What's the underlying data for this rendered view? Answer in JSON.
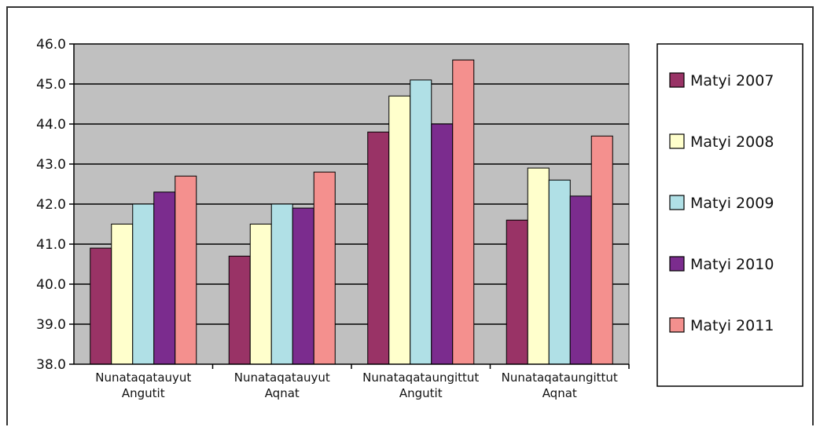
{
  "chart_data": {
    "type": "bar",
    "title": "",
    "xlabel": "",
    "ylabel": "",
    "ylim": [
      38.0,
      46.0
    ],
    "yticks": [
      "38.0",
      "39.0",
      "40.0",
      "41.0",
      "42.0",
      "43.0",
      "44.0",
      "45.0",
      "46.0"
    ],
    "grid": true,
    "legend_position": "right",
    "categories": [
      [
        "Nunataqatauyut",
        "Angutit"
      ],
      [
        "Nunataqatauyut",
        "Aqnat"
      ],
      [
        "Nunataqataungittut",
        "Angutit"
      ],
      [
        "Nunataqataungittut",
        "Aqnat"
      ]
    ],
    "series": [
      {
        "name": "Matyi 2007",
        "color": "#993366",
        "values": [
          40.9,
          40.7,
          43.8,
          41.6
        ]
      },
      {
        "name": "Matyi 2008",
        "color": "#FFFFCC",
        "values": [
          41.5,
          41.5,
          44.7,
          42.9
        ]
      },
      {
        "name": "Matyi 2009",
        "color": "#B0E0E6",
        "values": [
          42.0,
          42.0,
          45.1,
          42.6
        ]
      },
      {
        "name": "Matyi 2010",
        "color": "#7B2C8E",
        "values": [
          42.3,
          41.9,
          44.0,
          42.2
        ]
      },
      {
        "name": "Matyi 2011",
        "color": "#F4908E",
        "values": [
          42.7,
          42.8,
          45.6,
          43.7
        ]
      }
    ],
    "plot_background": "#C0C0C0"
  }
}
